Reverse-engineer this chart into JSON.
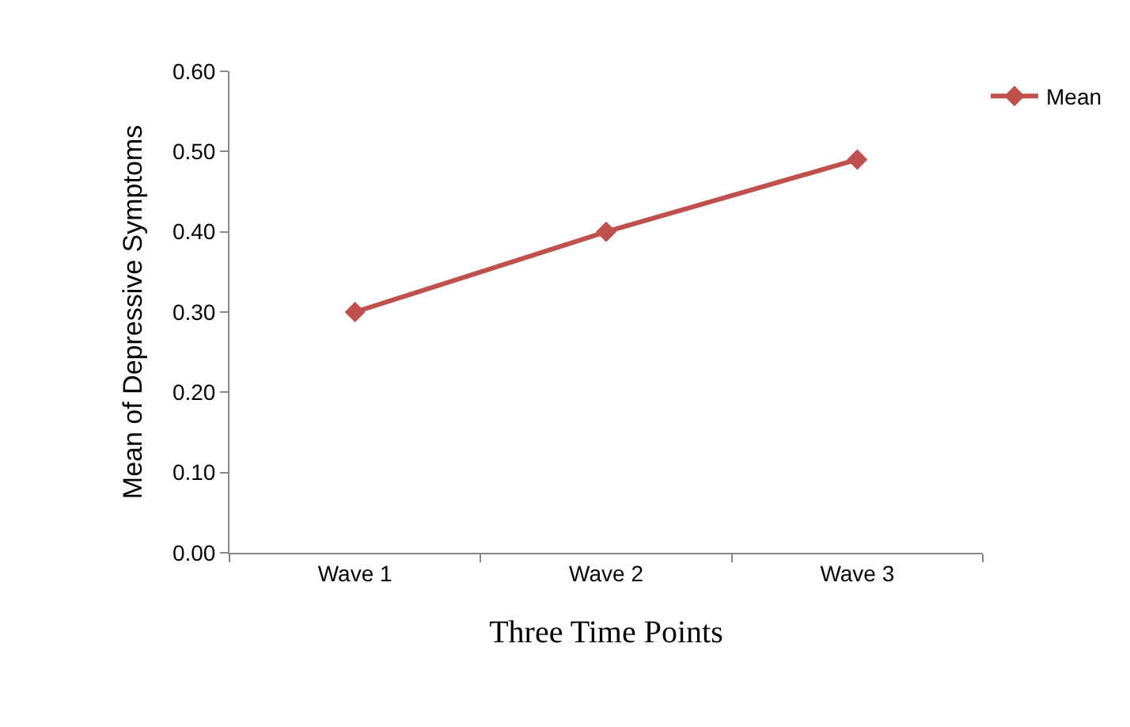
{
  "chart_data": {
    "type": "line",
    "xlabel": "Three Time Points",
    "ylabel": "Mean of Depressive Symptoms",
    "categories": [
      "Wave 1",
      "Wave 2",
      "Wave 3"
    ],
    "series": [
      {
        "name": "Mean",
        "color": "#c0504d",
        "values": [
          0.3,
          0.4,
          0.49
        ]
      }
    ],
    "ylim": [
      0,
      0.6
    ],
    "yticks": [
      {
        "value": 0,
        "label": "0.00"
      },
      {
        "value": 0.1,
        "label": "0.10"
      },
      {
        "value": 0.2,
        "label": "0.20"
      },
      {
        "value": 0.3,
        "label": "0.30"
      },
      {
        "value": 0.4,
        "label": "0.40"
      },
      {
        "value": 0.5,
        "label": "0.50"
      },
      {
        "value": 0.6,
        "label": "0.60"
      }
    ],
    "grid": false,
    "legend": "top right",
    "marker": "diamond",
    "line_style": "solid"
  }
}
